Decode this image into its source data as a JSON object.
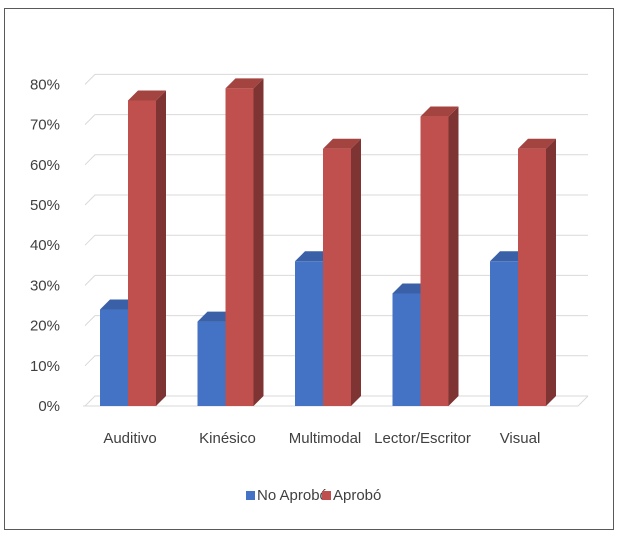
{
  "chart_data": {
    "type": "bar",
    "title": "",
    "xlabel": "",
    "ylabel": "",
    "categories": [
      "Auditivo",
      "Kinésico",
      "Multimodal",
      "Lector/Escritor",
      "Visual"
    ],
    "series": [
      {
        "name": "No Aprobó",
        "color": "#4472c4",
        "values": [
          24,
          21,
          36,
          28,
          36
        ]
      },
      {
        "name": "Aprobó",
        "color": "#c0504d",
        "values": [
          76,
          79,
          64,
          72,
          64
        ]
      }
    ],
    "y_ticks": [
      "0%",
      "10%",
      "20%",
      "30%",
      "40%",
      "50%",
      "60%",
      "70%",
      "80%"
    ],
    "ylim": [
      0,
      80
    ],
    "grid": true,
    "legend": "bottom",
    "three_d": true
  }
}
